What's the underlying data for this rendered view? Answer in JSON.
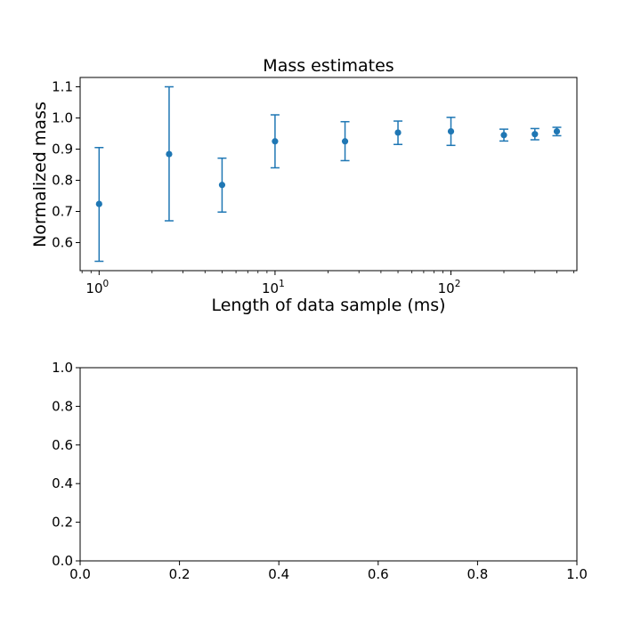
{
  "chart_data": [
    {
      "type": "scatter",
      "title": "Mass estimates",
      "xlabel": "Length of data sample (ms)",
      "ylabel": "Normalized mass",
      "xscale": "log",
      "xlim": [
        0.78,
        520
      ],
      "ylim": [
        0.51,
        1.13
      ],
      "xticks": [
        {
          "value": 1,
          "base": "10",
          "exp": "0"
        },
        {
          "value": 10,
          "base": "10",
          "exp": "1"
        },
        {
          "value": 100,
          "base": "10",
          "exp": "2"
        }
      ],
      "yticks": [
        "0.6",
        "0.7",
        "0.8",
        "0.9",
        "1.0",
        "1.1"
      ],
      "grid": false,
      "color": "#1f77b4",
      "series": [
        {
          "x": [
            1,
            2.5,
            5,
            10,
            25,
            50,
            100,
            200,
            300,
            400
          ],
          "y": [
            0.724,
            0.884,
            0.785,
            0.925,
            0.925,
            0.953,
            0.957,
            0.945,
            0.948,
            0.957
          ],
          "yerr_low": [
            0.54,
            0.67,
            0.698,
            0.84,
            0.863,
            0.915,
            0.912,
            0.926,
            0.93,
            0.943
          ],
          "yerr_high": [
            0.905,
            1.1,
            0.871,
            1.01,
            0.988,
            0.99,
            1.002,
            0.964,
            0.966,
            0.97
          ]
        }
      ]
    },
    {
      "type": "scatter",
      "title": "",
      "xlabel": "",
      "ylabel": "",
      "xlim": [
        0,
        1
      ],
      "ylim": [
        0,
        1
      ],
      "xticks": [
        "0.0",
        "0.2",
        "0.4",
        "0.6",
        "0.8",
        "1.0"
      ],
      "yticks": [
        "0.0",
        "0.2",
        "0.4",
        "0.6",
        "0.8",
        "1.0"
      ],
      "grid": false,
      "series": []
    }
  ]
}
